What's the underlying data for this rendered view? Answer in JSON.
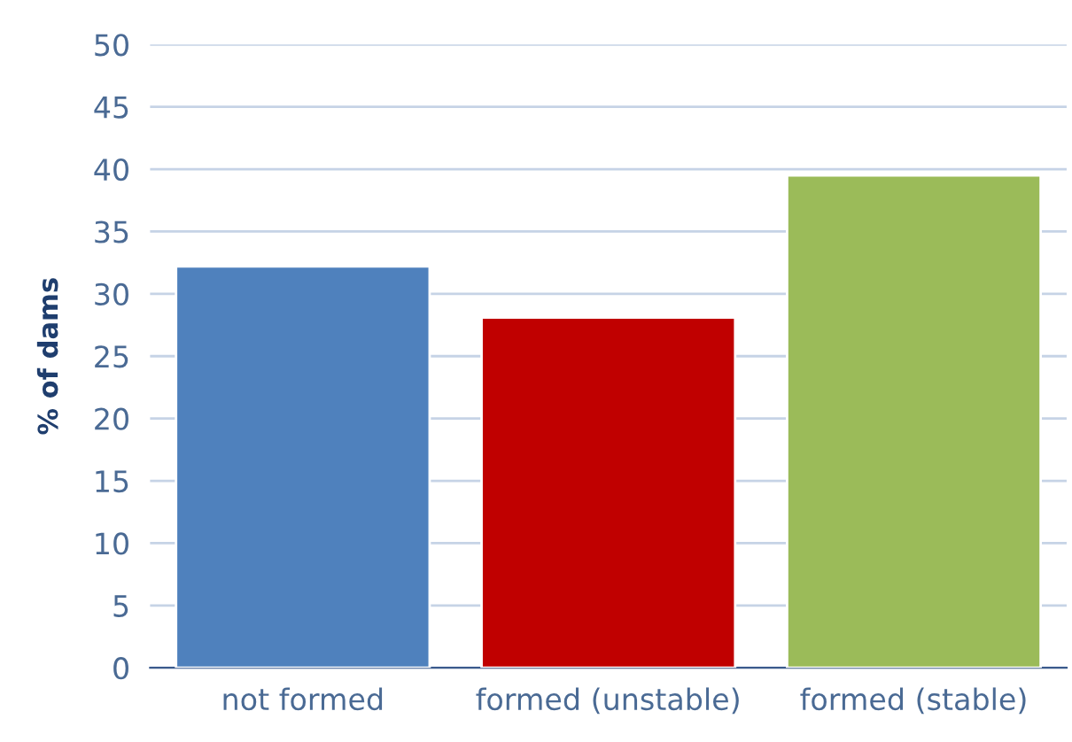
{
  "chart_data": {
    "type": "bar",
    "ylabel": "% of dams",
    "categories": [
      "not formed",
      "formed (unstable)",
      "formed (stable)"
    ],
    "values": [
      32.2,
      28.1,
      39.5
    ],
    "colors": [
      "#4f81bd",
      "#c00000",
      "#9bbb59"
    ],
    "ylim": [
      0,
      50
    ],
    "yticks": [
      0,
      5,
      10,
      15,
      20,
      25,
      30,
      35,
      40,
      45,
      50
    ],
    "grid": "y"
  }
}
